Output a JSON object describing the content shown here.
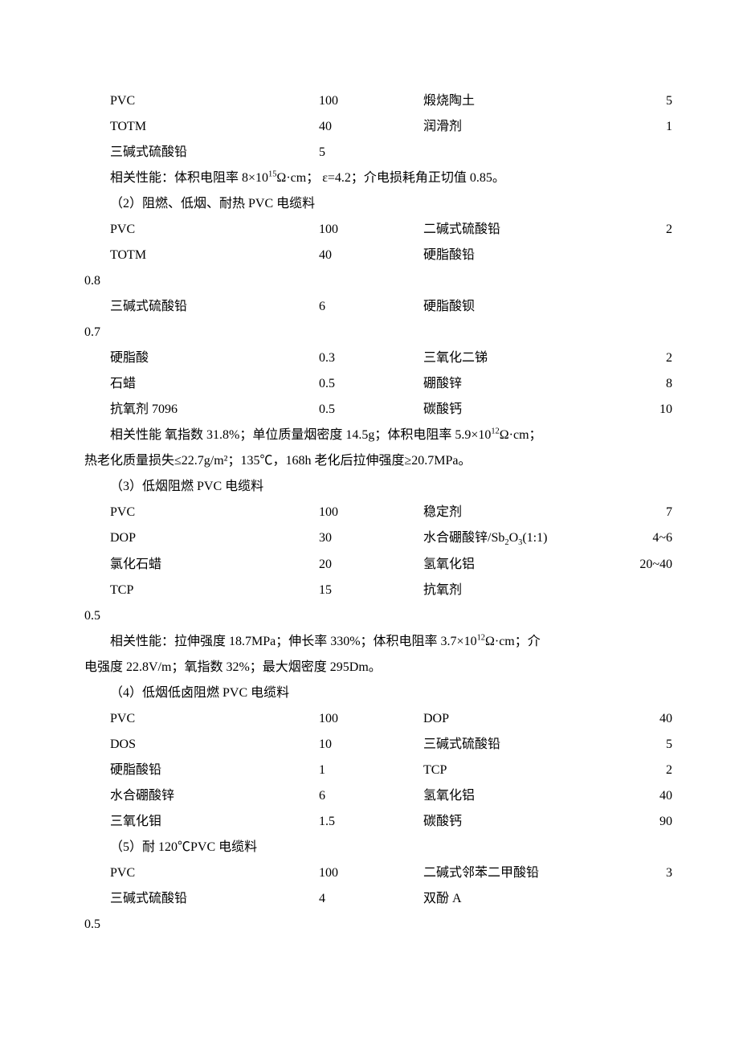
{
  "sec1": {
    "rows": [
      {
        "l": "PVC",
        "lv": "100",
        "r": "煅烧陶土",
        "rv": "5"
      },
      {
        "l": "TOTM",
        "lv": "40",
        "r": "润滑剂",
        "rv": "1"
      },
      {
        "l": "三碱式硫酸铅",
        "lv": "5",
        "r": "",
        "rv": ""
      }
    ],
    "perf_prefix": "相关性能：体积电阻率 8×10",
    "perf_exp": "15",
    "perf_suffix": "Ω·cm； ε=4.2；介电损耗角正切值 0.85。"
  },
  "sec2": {
    "title": "（2）阻燃、低烟、耐热 PVC 电缆料",
    "rows1": [
      {
        "l": "PVC",
        "lv": "100",
        "r": "二碱式硫酸铅",
        "rv": "2"
      },
      {
        "l": "TOTM",
        "lv": "40",
        "r": "硬脂酸铅",
        "rv": ""
      }
    ],
    "hang1": "0.8",
    "rows2": [
      {
        "l": "三碱式硫酸铅",
        "lv": "6",
        "r": "硬脂酸钡",
        "rv": ""
      }
    ],
    "hang2": "0.7",
    "rows3": [
      {
        "l": "硬脂酸",
        "lv": "0.3",
        "r": "三氧化二锑",
        "rv": "2"
      },
      {
        "l": "石蜡",
        "lv": "0.5",
        "r": "硼酸锌",
        "rv": "8"
      },
      {
        "l": "抗氧剂 7096",
        "lv": "0.5",
        "r": "碳酸钙",
        "rv": "10"
      }
    ],
    "perf1a": "相关性能 氧指数 31.8%；单位质量烟密度 14.5g；体积电阻率 5.9×10",
    "perf1exp": "12",
    "perf1b": "Ω·cm；",
    "perf2": "热老化质量损失≤22.7g/m²；135℃，168h 老化后拉伸强度≥20.7MPa。"
  },
  "sec3": {
    "title": "（3）低烟阻燃 PVC 电缆料",
    "rows1": [
      {
        "l": "PVC",
        "lv": "100",
        "r": "稳定剂",
        "rv": "7"
      }
    ],
    "row_sb": {
      "l": "DOP",
      "lv": "30",
      "r_pre": "水合硼酸锌/Sb",
      "r_sub": "2",
      "r_mid": "O",
      "r_sub2": "3",
      "r_post": "(1:1)",
      "rv": "4~6"
    },
    "rows2": [
      {
        "l": "氯化石蜡",
        "lv": "20",
        "r": "氢氧化铝",
        "rv": "20~40"
      },
      {
        "l": "TCP",
        "lv": "15",
        "r": "抗氧剂",
        "rv": ""
      }
    ],
    "hang": "0.5",
    "perf1a": "相关性能：拉伸强度 18.7MPa；伸长率 330%；体积电阻率 3.7×10",
    "perf1exp": "12",
    "perf1b": "Ω·cm；介",
    "perf2": "电强度 22.8V/m；氧指数 32%；最大烟密度 295Dm。"
  },
  "sec4": {
    "title": "（4）低烟低卤阻燃 PVC 电缆料",
    "rows": [
      {
        "l": "PVC",
        "lv": "100",
        "r": "DOP",
        "rv": "40"
      },
      {
        "l": "DOS",
        "lv": "10",
        "r": "三碱式硫酸铅",
        "rv": "5"
      },
      {
        "l": "硬脂酸铅",
        "lv": "1",
        "r": "TCP",
        "rv": "2"
      },
      {
        "l": "水合硼酸锌",
        "lv": "6",
        "r": "氢氧化铝",
        "rv": "40"
      },
      {
        "l": "三氧化钼",
        "lv": "1.5",
        "r": "碳酸钙",
        "rv": "90"
      }
    ]
  },
  "sec5": {
    "title": "（5）耐 120℃PVC 电缆料",
    "rows": [
      {
        "l": "PVC",
        "lv": "100",
        "r": "二碱式邻苯二甲酸铅",
        "rv": "3"
      },
      {
        "l": "三碱式硫酸铅",
        "lv": "4",
        "r": "双酚 A",
        "rv": ""
      }
    ],
    "hang": "0.5"
  }
}
